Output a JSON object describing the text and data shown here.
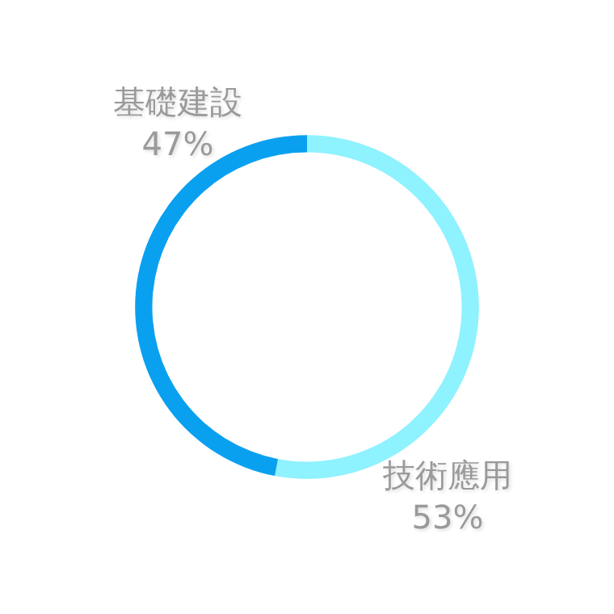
{
  "chart_data": {
    "type": "donut",
    "categories": [
      "基礎建設",
      "技術應用"
    ],
    "values": [
      47,
      53
    ],
    "value_labels": [
      "47%",
      "53%"
    ],
    "colors": [
      "#0aa0f0",
      "#8ef2ff"
    ]
  }
}
